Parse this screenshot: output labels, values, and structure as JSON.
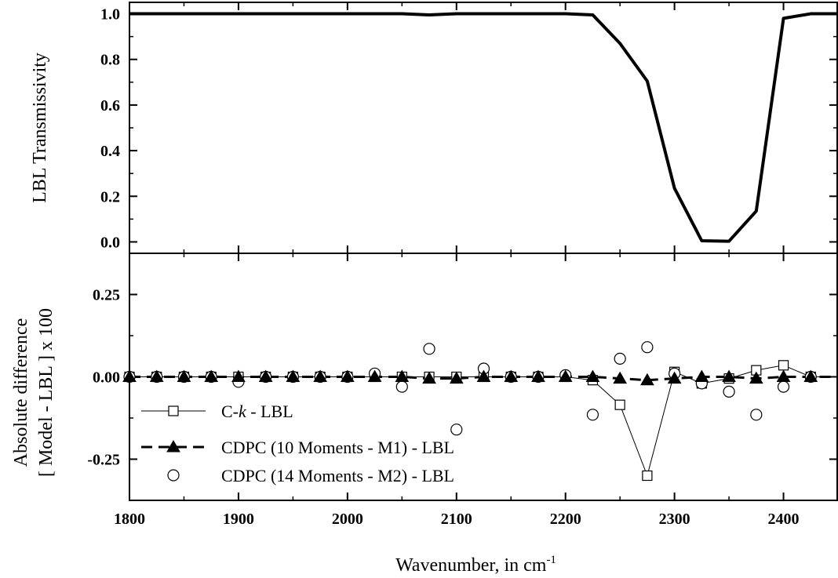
{
  "chart_data": [
    {
      "type": "line",
      "panel": "top",
      "ylabel": "LBL  Transmissivity",
      "xlim": [
        1800,
        2450
      ],
      "ylim": [
        -0.05,
        1.05
      ],
      "yticks": [
        0.0,
        0.2,
        0.4,
        0.6,
        0.8,
        1.0
      ],
      "ytick_labels": [
        "0.0",
        "0.2",
        "0.4",
        "0.6",
        "0.8",
        "1.0"
      ],
      "grid": false,
      "series": [
        {
          "color": "#000000",
          "x": [
            1800,
            1825,
            1850,
            1875,
            1900,
            1925,
            1950,
            1975,
            2000,
            2025,
            2050,
            2075,
            2100,
            2125,
            2150,
            2175,
            2200,
            2225,
            2250,
            2275,
            2300,
            2325,
            2350,
            2375,
            2400,
            2425,
            2450
          ],
          "y": [
            1.0,
            1.0,
            1.0,
            1.0,
            1.0,
            1.0,
            1.0,
            1.0,
            1.0,
            1.0,
            1.0,
            0.995,
            1.0,
            1.0,
            1.0,
            1.0,
            1.0,
            0.995,
            0.87,
            0.705,
            0.235,
            0.005,
            0.003,
            0.135,
            0.98,
            1.0,
            1.0
          ]
        }
      ]
    },
    {
      "type": "scatter",
      "panel": "bottom",
      "xlabel": "Wavenumber, in cm",
      "xlabel_sup": "-1",
      "ylabel_line1": "Absolute difference",
      "ylabel_line2": "[ Model - LBL ] x 100",
      "xlim": [
        1800,
        2450
      ],
      "ylim": [
        -0.375,
        0.375
      ],
      "xticks": [
        1800,
        1900,
        2000,
        2100,
        2200,
        2300,
        2400
      ],
      "xtick_labels": [
        "1800",
        "1900",
        "2000",
        "2100",
        "2200",
        "2300",
        "2400"
      ],
      "yticks": [
        -0.25,
        0.0,
        0.25
      ],
      "ytick_labels": [
        "-0.25",
        "0.00",
        "0.25"
      ],
      "grid": false,
      "legend_position": "bottom-left",
      "series": [
        {
          "name_prefix": "C-",
          "name_italic": "k",
          "name_suffix": " - LBL",
          "marker": "open-square",
          "line": "thin-solid",
          "x": [
            1800,
            1825,
            1850,
            1875,
            1900,
            1925,
            1950,
            1975,
            2000,
            2025,
            2050,
            2075,
            2100,
            2125,
            2150,
            2175,
            2200,
            2225,
            2250,
            2275,
            2300,
            2325,
            2350,
            2375,
            2400,
            2425,
            2450
          ],
          "y": [
            0,
            0,
            0,
            0,
            0,
            0,
            0,
            0,
            0,
            0,
            0,
            0,
            0,
            0,
            0,
            0,
            0,
            -0.01,
            -0.085,
            -0.3,
            0.015,
            -0.02,
            -0.005,
            0.02,
            0.035,
            0,
            0
          ]
        },
        {
          "name": "CDPC (10 Moments - M1) - LBL",
          "marker": "filled-triangle",
          "line": "thick-dashed",
          "x": [
            1800,
            1825,
            1850,
            1875,
            1900,
            1925,
            1950,
            1975,
            2000,
            2025,
            2050,
            2075,
            2100,
            2125,
            2150,
            2175,
            2200,
            2225,
            2250,
            2275,
            2300,
            2325,
            2350,
            2375,
            2400,
            2425,
            2450
          ],
          "y": [
            0,
            0,
            0,
            0,
            0,
            0,
            0,
            0,
            0,
            0,
            0,
            -0.005,
            -0.005,
            0,
            0,
            0,
            0,
            0,
            -0.005,
            -0.01,
            -0.005,
            0,
            0,
            -0.005,
            0,
            0,
            0
          ]
        },
        {
          "name": "CDPC (14 Moments - M2) - LBL",
          "marker": "open-circle",
          "line": "none",
          "x": [
            1800,
            1825,
            1850,
            1875,
            1900,
            1925,
            1950,
            1975,
            2000,
            2025,
            2050,
            2075,
            2100,
            2125,
            2150,
            2175,
            2200,
            2225,
            2250,
            2275,
            2300,
            2325,
            2350,
            2375,
            2400,
            2425
          ],
          "y": [
            0,
            0,
            0,
            0,
            -0.015,
            0,
            0,
            0,
            0,
            0.01,
            -0.03,
            0.085,
            -0.16,
            0.025,
            0,
            0,
            0.005,
            -0.115,
            0.055,
            0.09,
            0.01,
            -0.02,
            -0.045,
            -0.115,
            -0.03,
            0
          ]
        }
      ]
    }
  ]
}
